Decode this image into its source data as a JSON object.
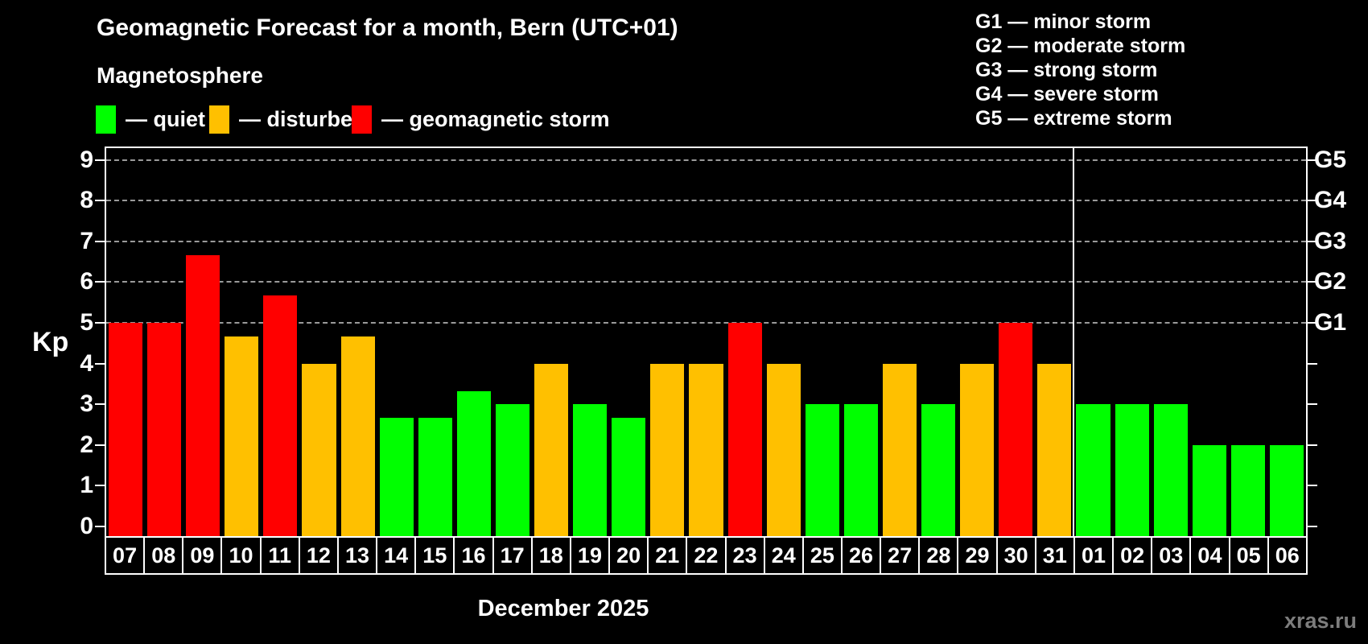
{
  "header": {
    "title": "Geomagnetic Forecast for a month, Bern (UTC+01)",
    "subtitle": "Magnetosphere"
  },
  "legend": {
    "items": [
      {
        "key": "quiet",
        "label": "— quiet"
      },
      {
        "key": "disturbed",
        "label": "— disturbed"
      },
      {
        "key": "storm",
        "label": "— geomagnetic storm"
      }
    ]
  },
  "g_scale_legend": {
    "lines": [
      "G1 — minor storm",
      "G2 — moderate storm",
      "G3 — strong storm",
      "G4 — severe storm",
      "G5 — extreme storm"
    ]
  },
  "chart_data": {
    "type": "bar",
    "title": "Geomagnetic Forecast for a month, Bern (UTC+01)",
    "xlabel": "December 2025",
    "ylabel": "Kp",
    "ylim": [
      0,
      9.4
    ],
    "grid": "horizontal dashed lines at Kp 5,6,7,8,9",
    "legend_position": "top-left",
    "categories": [
      "07",
      "08",
      "09",
      "10",
      "11",
      "12",
      "13",
      "14",
      "15",
      "16",
      "17",
      "18",
      "19",
      "20",
      "21",
      "22",
      "23",
      "24",
      "25",
      "26",
      "27",
      "28",
      "29",
      "30",
      "31",
      "01",
      "02",
      "03",
      "04",
      "05",
      "06"
    ],
    "values": [
      5.0,
      5.0,
      6.67,
      4.67,
      5.67,
      4.0,
      4.67,
      2.67,
      2.67,
      3.33,
      3.0,
      4.0,
      3.0,
      2.67,
      4.0,
      4.0,
      5.0,
      4.0,
      3.0,
      3.0,
      4.0,
      3.0,
      4.0,
      5.0,
      4.0,
      3.0,
      3.0,
      3.0,
      2.0,
      2.0,
      2.0
    ],
    "statuses": [
      "storm",
      "storm",
      "storm",
      "disturbed",
      "storm",
      "disturbed",
      "disturbed",
      "quiet",
      "quiet",
      "quiet",
      "quiet",
      "disturbed",
      "quiet",
      "quiet",
      "disturbed",
      "disturbed",
      "storm",
      "disturbed",
      "quiet",
      "quiet",
      "disturbed",
      "quiet",
      "disturbed",
      "storm",
      "disturbed",
      "quiet",
      "quiet",
      "quiet",
      "quiet",
      "quiet",
      "quiet"
    ],
    "status_colors": {
      "quiet": "#00ff00",
      "disturbed": "#ffc000",
      "storm": "#ff0000"
    },
    "y_ticks_left": [
      0,
      1,
      2,
      3,
      4,
      5,
      6,
      7,
      8,
      9
    ],
    "gridline_values": [
      5,
      6,
      7,
      8,
      9
    ],
    "right_axis_labels": [
      {
        "value": 5,
        "label": "G1"
      },
      {
        "value": 6,
        "label": "G2"
      },
      {
        "value": 7,
        "label": "G3"
      },
      {
        "value": 8,
        "label": "G4"
      },
      {
        "value": 9,
        "label": "G5"
      }
    ],
    "month_separator_after_index": 24
  },
  "footer": {
    "xlabel": "December 2025",
    "watermark": "xras.ru"
  }
}
